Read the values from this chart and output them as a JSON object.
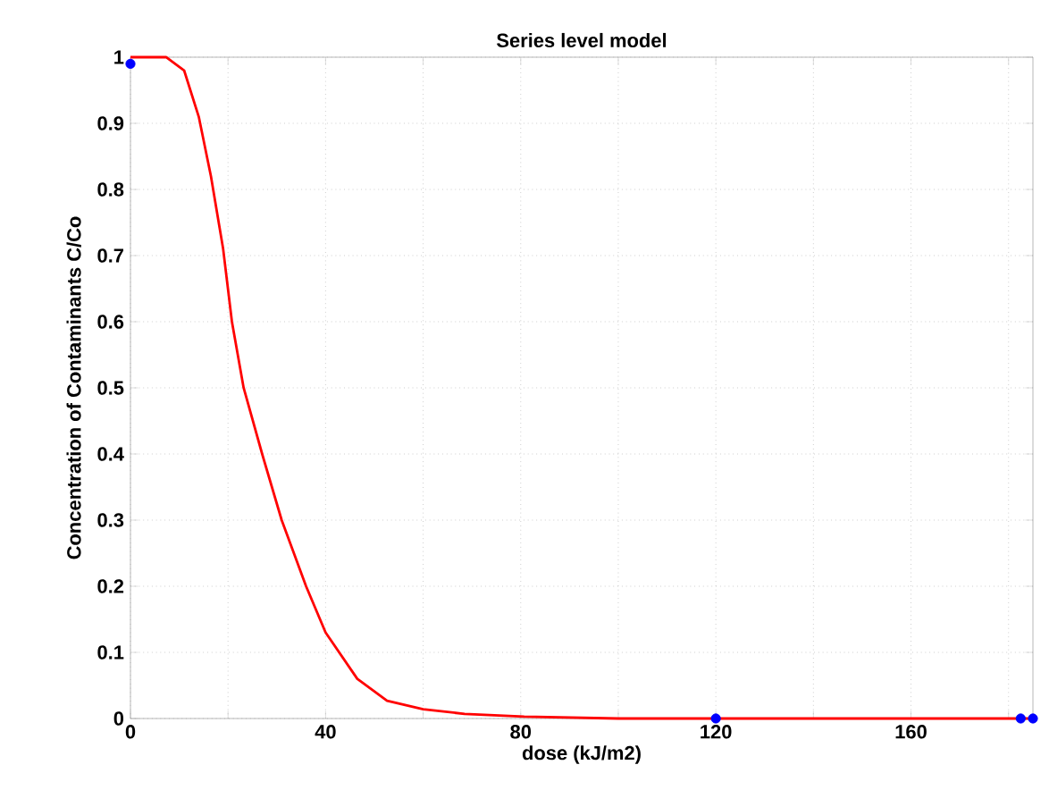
{
  "chart_data": {
    "type": "line",
    "title": "Series level model",
    "xlabel": "dose (kJ/m2)",
    "ylabel": "Concentration of Contaminants C/Co",
    "xlim": [
      0,
      185
    ],
    "ylim": [
      0,
      1
    ],
    "xticks": [
      0,
      {
        "value": 20,
        "label": null
      },
      40,
      {
        "value": 60,
        "label": null
      },
      80,
      {
        "value": 100,
        "label": null
      },
      120,
      {
        "value": 140,
        "label": null
      },
      160,
      {
        "value": 180,
        "label": null
      }
    ],
    "yticks": [
      0,
      0.1,
      0.2,
      0.3,
      0.4,
      0.5,
      0.6,
      0.7,
      0.8,
      0.9,
      1
    ],
    "grid": true,
    "series": [
      {
        "color": "#ff0000",
        "marker": "none",
        "x": [
          0,
          7.3,
          11,
          14,
          16.5,
          19,
          20.8,
          23.2,
          27,
          31,
          36,
          40,
          46.5,
          52.6,
          60,
          68.5,
          80.7,
          100,
          185
        ],
        "values": [
          1,
          1,
          0.98,
          0.91,
          0.82,
          0.71,
          0.6,
          0.5,
          0.4,
          0.3,
          0.2,
          0.13,
          0.06,
          0.027,
          0.014,
          0.007,
          0.003,
          0,
          0
        ]
      },
      {
        "type": "scatter",
        "color": "#0000ff",
        "marker": "circle",
        "x": [
          0,
          120,
          182.5,
          185
        ],
        "values": [
          0.99,
          0,
          0,
          0
        ]
      }
    ]
  }
}
